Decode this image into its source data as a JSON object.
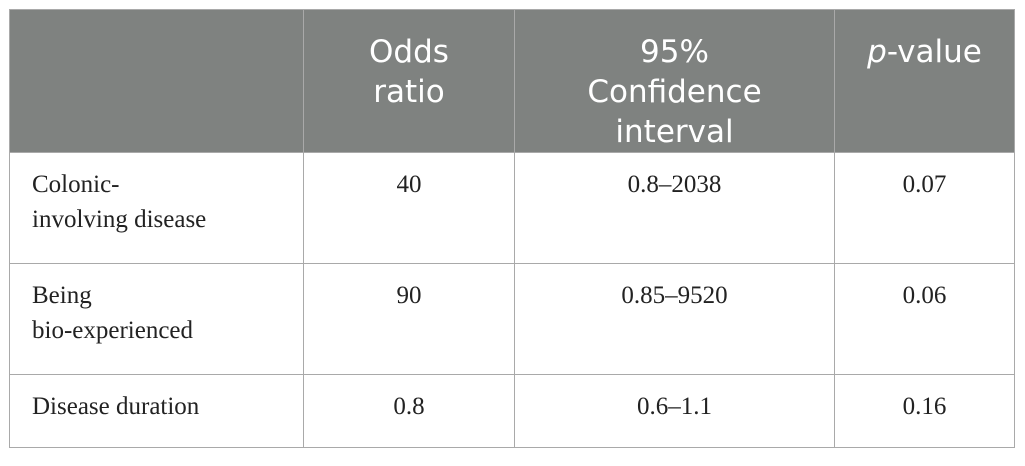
{
  "table": {
    "headers": {
      "col0": "",
      "odds_line1": "Odds",
      "odds_line2": "ratio",
      "ci_line1": "95%",
      "ci_line2": "Confidence",
      "ci_line3": "interval",
      "p_italic": "p",
      "p_rest": "-value"
    },
    "rows": [
      {
        "label_line1": "Colonic-",
        "label_line2": "involving disease",
        "odds_ratio": "40",
        "ci": "0.8–2038",
        "p_value": "0.07"
      },
      {
        "label_line1": "Being",
        "label_line2": "bio-experienced",
        "odds_ratio": "90",
        "ci": "0.85–9520",
        "p_value": "0.06"
      },
      {
        "label_line1": "Disease duration",
        "label_line2": "",
        "odds_ratio": "0.8",
        "ci": "0.6–1.1",
        "p_value": "0.16"
      }
    ]
  },
  "colors": {
    "header_bg": "#7f8280",
    "header_text": "#ffffff",
    "border": "#a9a9a9"
  }
}
